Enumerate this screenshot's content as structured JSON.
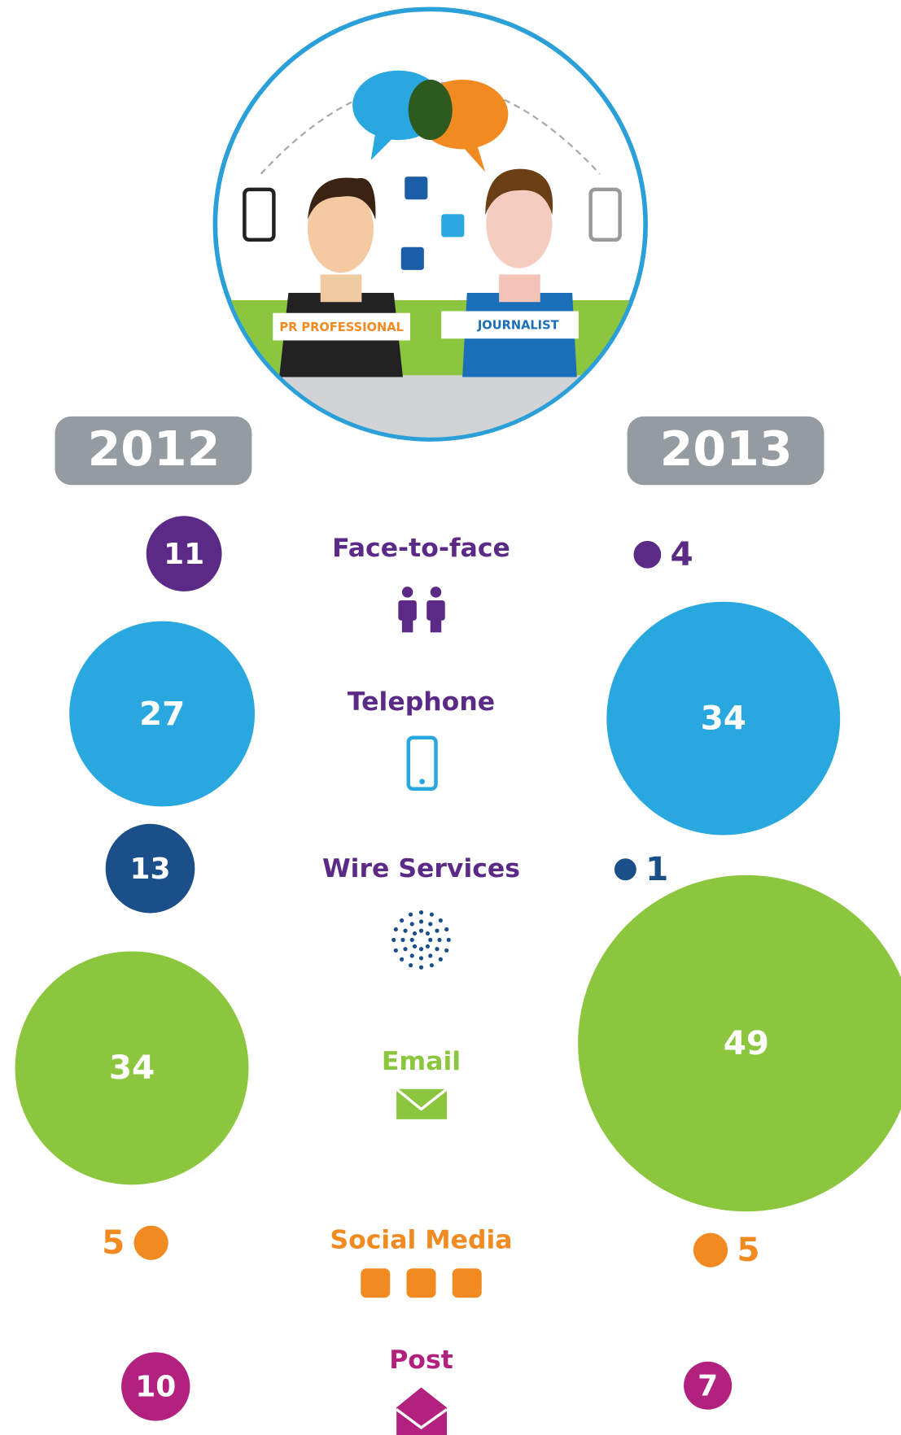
{
  "chart_data": {
    "type": "bubble",
    "illustration_labels": [
      "PR PROFESSIONAL",
      "JOURNALIST"
    ],
    "categories": [
      "Face-to-face",
      "Telephone",
      "Wire Services",
      "Email",
      "Social Media",
      "Post"
    ],
    "colors": [
      "#5a2a86",
      "#29a8e0",
      "#1b4f8a",
      "#8cc63f",
      "#f18a21",
      "#b3217f"
    ],
    "label_colors": [
      "#5a2a86",
      "#5a2a86",
      "#5a2a86",
      "#8cc63f",
      "#f18a21",
      "#b3217f"
    ],
    "series": [
      {
        "name": "2012",
        "values": [
          11,
          27,
          13,
          34,
          5,
          10
        ]
      },
      {
        "name": "2013",
        "values": [
          4,
          34,
          1,
          49,
          5,
          7
        ]
      }
    ]
  }
}
